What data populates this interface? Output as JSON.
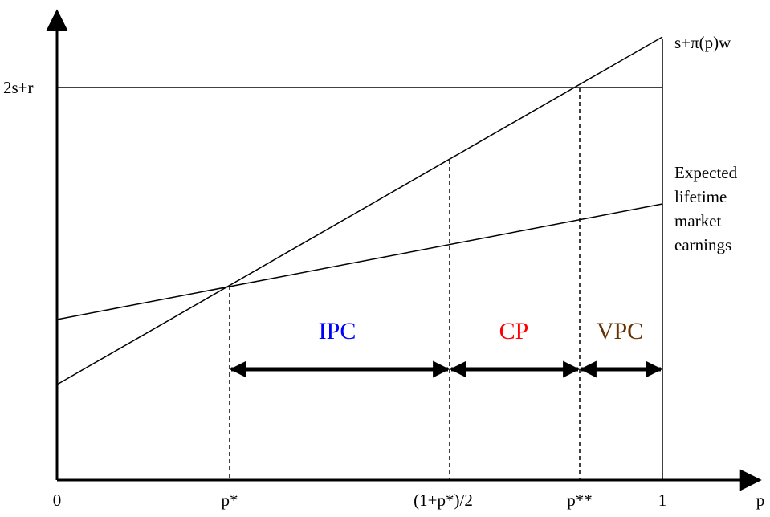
{
  "labels": {
    "y_level": "2s+r",
    "upper_line": "s+π(p)w",
    "lower_line": [
      "Expected",
      "lifetime",
      "market",
      "earnings"
    ],
    "axis_x": "p",
    "ticks": {
      "zero": "0",
      "p_star": "p*",
      "midpoint": "(1+p*)/2",
      "p_double_star": "p**",
      "one": "1"
    },
    "regions": {
      "ipc": "IPC",
      "cp": "CP",
      "vpc": "VPC"
    }
  },
  "colors": {
    "ipc": "#0000ff",
    "cp": "#ff0000",
    "vpc": "#663300",
    "lines": "#000000"
  }
}
